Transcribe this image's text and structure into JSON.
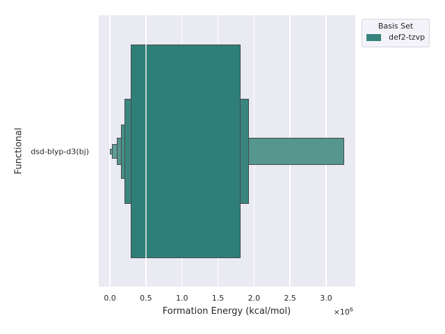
{
  "colors": {
    "figure_bg": "#ffffff",
    "axes_bg": "#eaeaf2",
    "grid": "#ffffff",
    "box_edge": "#45494d",
    "median_line": "rgba(255,255,255,0.7)",
    "text": "#262626",
    "legend_bg": "#f3f3f9",
    "legend_border": "#d5d5e0",
    "accent_teal": "#35837c"
  },
  "y_axis": {
    "label": "Functional",
    "tick_label": "dsd-blyp-d3(bj)"
  },
  "x_axis": {
    "label": "Formation Energy (kcal/mol)",
    "offset_base": "×10",
    "offset_exponent": "6",
    "tick_labels": [
      "0.0",
      "0.5",
      "1.0",
      "1.5",
      "2.0",
      "2.5",
      "3.0"
    ],
    "tick_values": [
      0,
      0.5,
      1.0,
      1.5,
      2.0,
      2.5,
      3.0
    ]
  },
  "legend": {
    "title": "Basis Set",
    "entries": [
      {
        "label": "def2-tzvp",
        "color": "#35837c"
      }
    ]
  },
  "chart_data": {
    "type": "boxen",
    "orientation": "horizontal",
    "title": "",
    "xlabel": "Formation Energy (kcal/mol)",
    "ylabel": "Functional",
    "value_scale_note": "x values in units of 1e6 kcal/mol",
    "categories": [
      "dsd-blyp-d3(bj)"
    ],
    "series": [
      {
        "name": "def2-tzvp",
        "median": 0.5,
        "boxes": [
          {
            "level": 1,
            "lower": 0.29,
            "upper": 1.81,
            "color": "#2e7f77"
          },
          {
            "level": 2,
            "lower": 0.205,
            "upper": 1.93,
            "color": "#3a867e"
          },
          {
            "level": 3,
            "lower": 0.15,
            "upper": 1.92,
            "color": "#468f87"
          },
          {
            "level": 4,
            "lower": 0.1,
            "upper": 3.25,
            "color": "#55968f"
          },
          {
            "level": 5,
            "lower": 0.025,
            "upper": 3.25,
            "color": "#5f9d96"
          },
          {
            "level": 6,
            "lower": -0.005,
            "upper": 3.25,
            "color": "#6aa49d"
          }
        ]
      }
    ],
    "xlim": [
      -0.155,
      3.405
    ],
    "grid": true,
    "legend_position": "upper right outside axes"
  }
}
